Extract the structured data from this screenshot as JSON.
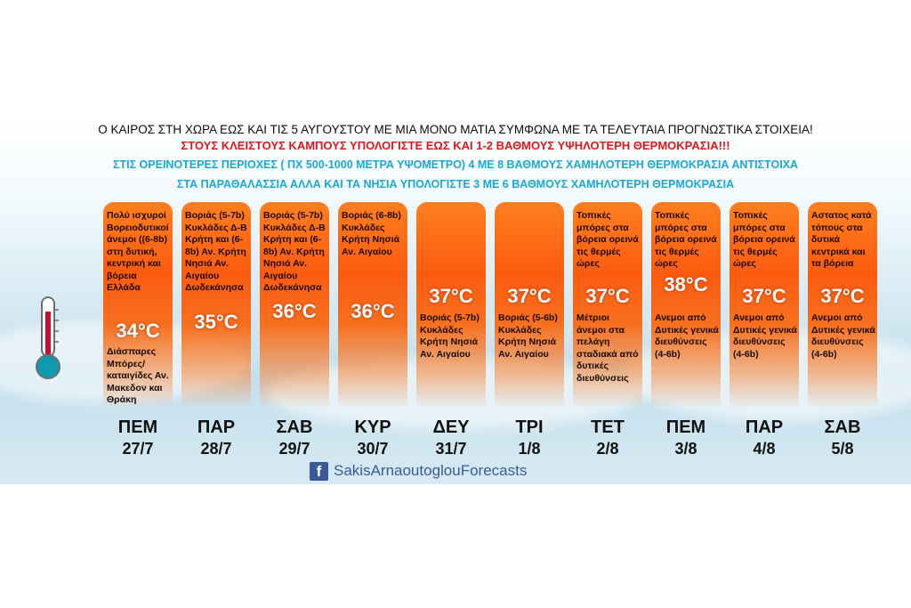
{
  "headline": "Ο ΚΑΙΡΟΣ ΣΤΗ ΧΩΡΑ ΕΩΣ ΚΑΙ ΤΙΣ 5 ΑΥΓΟΥΣΤΟΥ ΜΕ ΜΙΑ ΜΟΝΟ ΜΑΤΙΑ ΣΥΜΦΩΝΑ ΜΕ ΤΑ ΤΕΛΕΥΤΑΙΑ ΠΡΟΓΝΩΣΤΙΚΑ ΣΤΟΙΧΕΙΑ!",
  "warning_plains": "ΣΤΟΥΣ ΚΛΕΙΣΤΟΥΣ ΚΑΜΠΟΥΣ ΥΠΟΛΟΓΙΣΤΕ ΕΩΣ ΚΑΙ 1-2 ΒΑΘΜΟΥΣ ΥΨΗΛΟΤΕΡΗ ΘΕΡΜΟΚΡΑΣΙΑ!!!",
  "note_mountains": "ΣΤΙΣ ΟΡΕΙΝΟΤΕΡΕΣ ΠΕΡΙΟΧΕΣ ( ΠΧ 500-1000 ΜΕΤΡΑ ΥΨΟΜΕΤΡΟ) 4 ΜΕ 8 ΒΑΘΜΟΥΣ ΧΑΜΗΛΟΤΕΡΗ ΘΕΡΜΟΚΡΑΣΙΑ ΑΝΤΙΣΤΟΙΧΑ",
  "note_coast": "ΣΤΑ ΠΑΡΑΘΑΛΑΣΣΙΑ ΑΛΛΑ ΚΑΙ ΤΑ ΝΗΣΙΑ ΥΠΟΛΟΓΙΣΤΕ 3 ΜΕ 6 ΒΑΘΜΟΥΣ ΧΑΜΗΛΟΤΕΡΗ ΘΕΡΜΟΚΡΑΣΙΑ",
  "days": [
    {
      "day": "ΠΕΜ",
      "date": "27/7",
      "temp": "34°C",
      "top": "Πολύ ισχυροί Βορειοδυτικοί άνεμοι ((6-8b) στη δυτική, κεντρική και βόρεια Ελλάδα",
      "bottom": "Διάσπαρες Μπόρες/ καταιγίδες Αν. Μακεδον και Θράκη"
    },
    {
      "day": "ΠΑΡ",
      "date": "28/7",
      "temp": "35°C",
      "top": "Βοριάς (5-7b) Κυκλάδες Δ-Β Κρήτη και (6-8b) Αν. Κρήτη Νησιά Αν. Αιγαίου Δωδεκάνησα",
      "bottom": ""
    },
    {
      "day": "ΣΑΒ",
      "date": "29/7",
      "temp": "36°C",
      "top": "Βοριάς (5-7b) Κυκλάδες Δ-Β Κρήτη και (6-8b) Αν. Κρήτη Νησιά Αν. Αιγαίου Δωδεκάνησα",
      "bottom": ""
    },
    {
      "day": "ΚΥΡ",
      "date": "30/7",
      "temp": "36°C",
      "top": "Βοριάς (6-8b) Κυκλάδες Κρήτη Νησιά Αν. Αιγαίου",
      "bottom": ""
    },
    {
      "day": "ΔΕΥ",
      "date": "31/7",
      "temp": "37°C",
      "top": "",
      "bottom": "Βοριάς (5-7b) Κυκλάδες Κρήτη Νησιά Αν. Αιγαίου"
    },
    {
      "day": "ΤΡΙ",
      "date": "1/8",
      "temp": "37°C",
      "top": "",
      "bottom": "Βοριάς (5-6b) Κυκλάδες Κρήτη Νησιά Αν. Αιγαίου"
    },
    {
      "day": "ΤΕΤ",
      "date": "2/8",
      "temp": "37°C",
      "top": "Τοπικές μπόρες στα βόρεια ορεινά τις θερμές ώρες",
      "bottom": "Μέτριοι άνεμοι στα πελάγη σταδιακά από δυτικές διευθύνσεις"
    },
    {
      "day": "ΠΕΜ",
      "date": "3/8",
      "temp": "38°C",
      "top": "Τοπικές μπόρες στα βόρεια ορεινά τις θερμές ώρες",
      "bottom": "Ανεμοι από Δυτικές γενικά διευθύνσεις (4-6b)"
    },
    {
      "day": "ΠΑΡ",
      "date": "4/8",
      "temp": "37°C",
      "top": "Τοπικές μπόρες στα βόρεια ορεινά τις θερμές ώρες",
      "bottom": "Ανεμοι από Δυτικές γενικά διευθύνσεις (4-6b)"
    },
    {
      "day": "ΣΑΒ",
      "date": "5/8",
      "temp": "37°C",
      "top": "Αστατος κατά τόπους στα δυτικά κεντρικά και τα βόρεια",
      "bottom": "Ανεμοι από Δυτικές γενικά διευθύνσεις (4-6b)"
    }
  ],
  "footer": {
    "fb_letter": "f",
    "handle": "SakisArnaoutoglouForecasts"
  },
  "icons": {
    "thermometer": "thermometer-icon",
    "facebook": "facebook-icon"
  },
  "colors": {
    "warning": "#e0161b",
    "note": "#19a7d8",
    "column": "#fb5b10",
    "facebook": "#3b5998"
  }
}
